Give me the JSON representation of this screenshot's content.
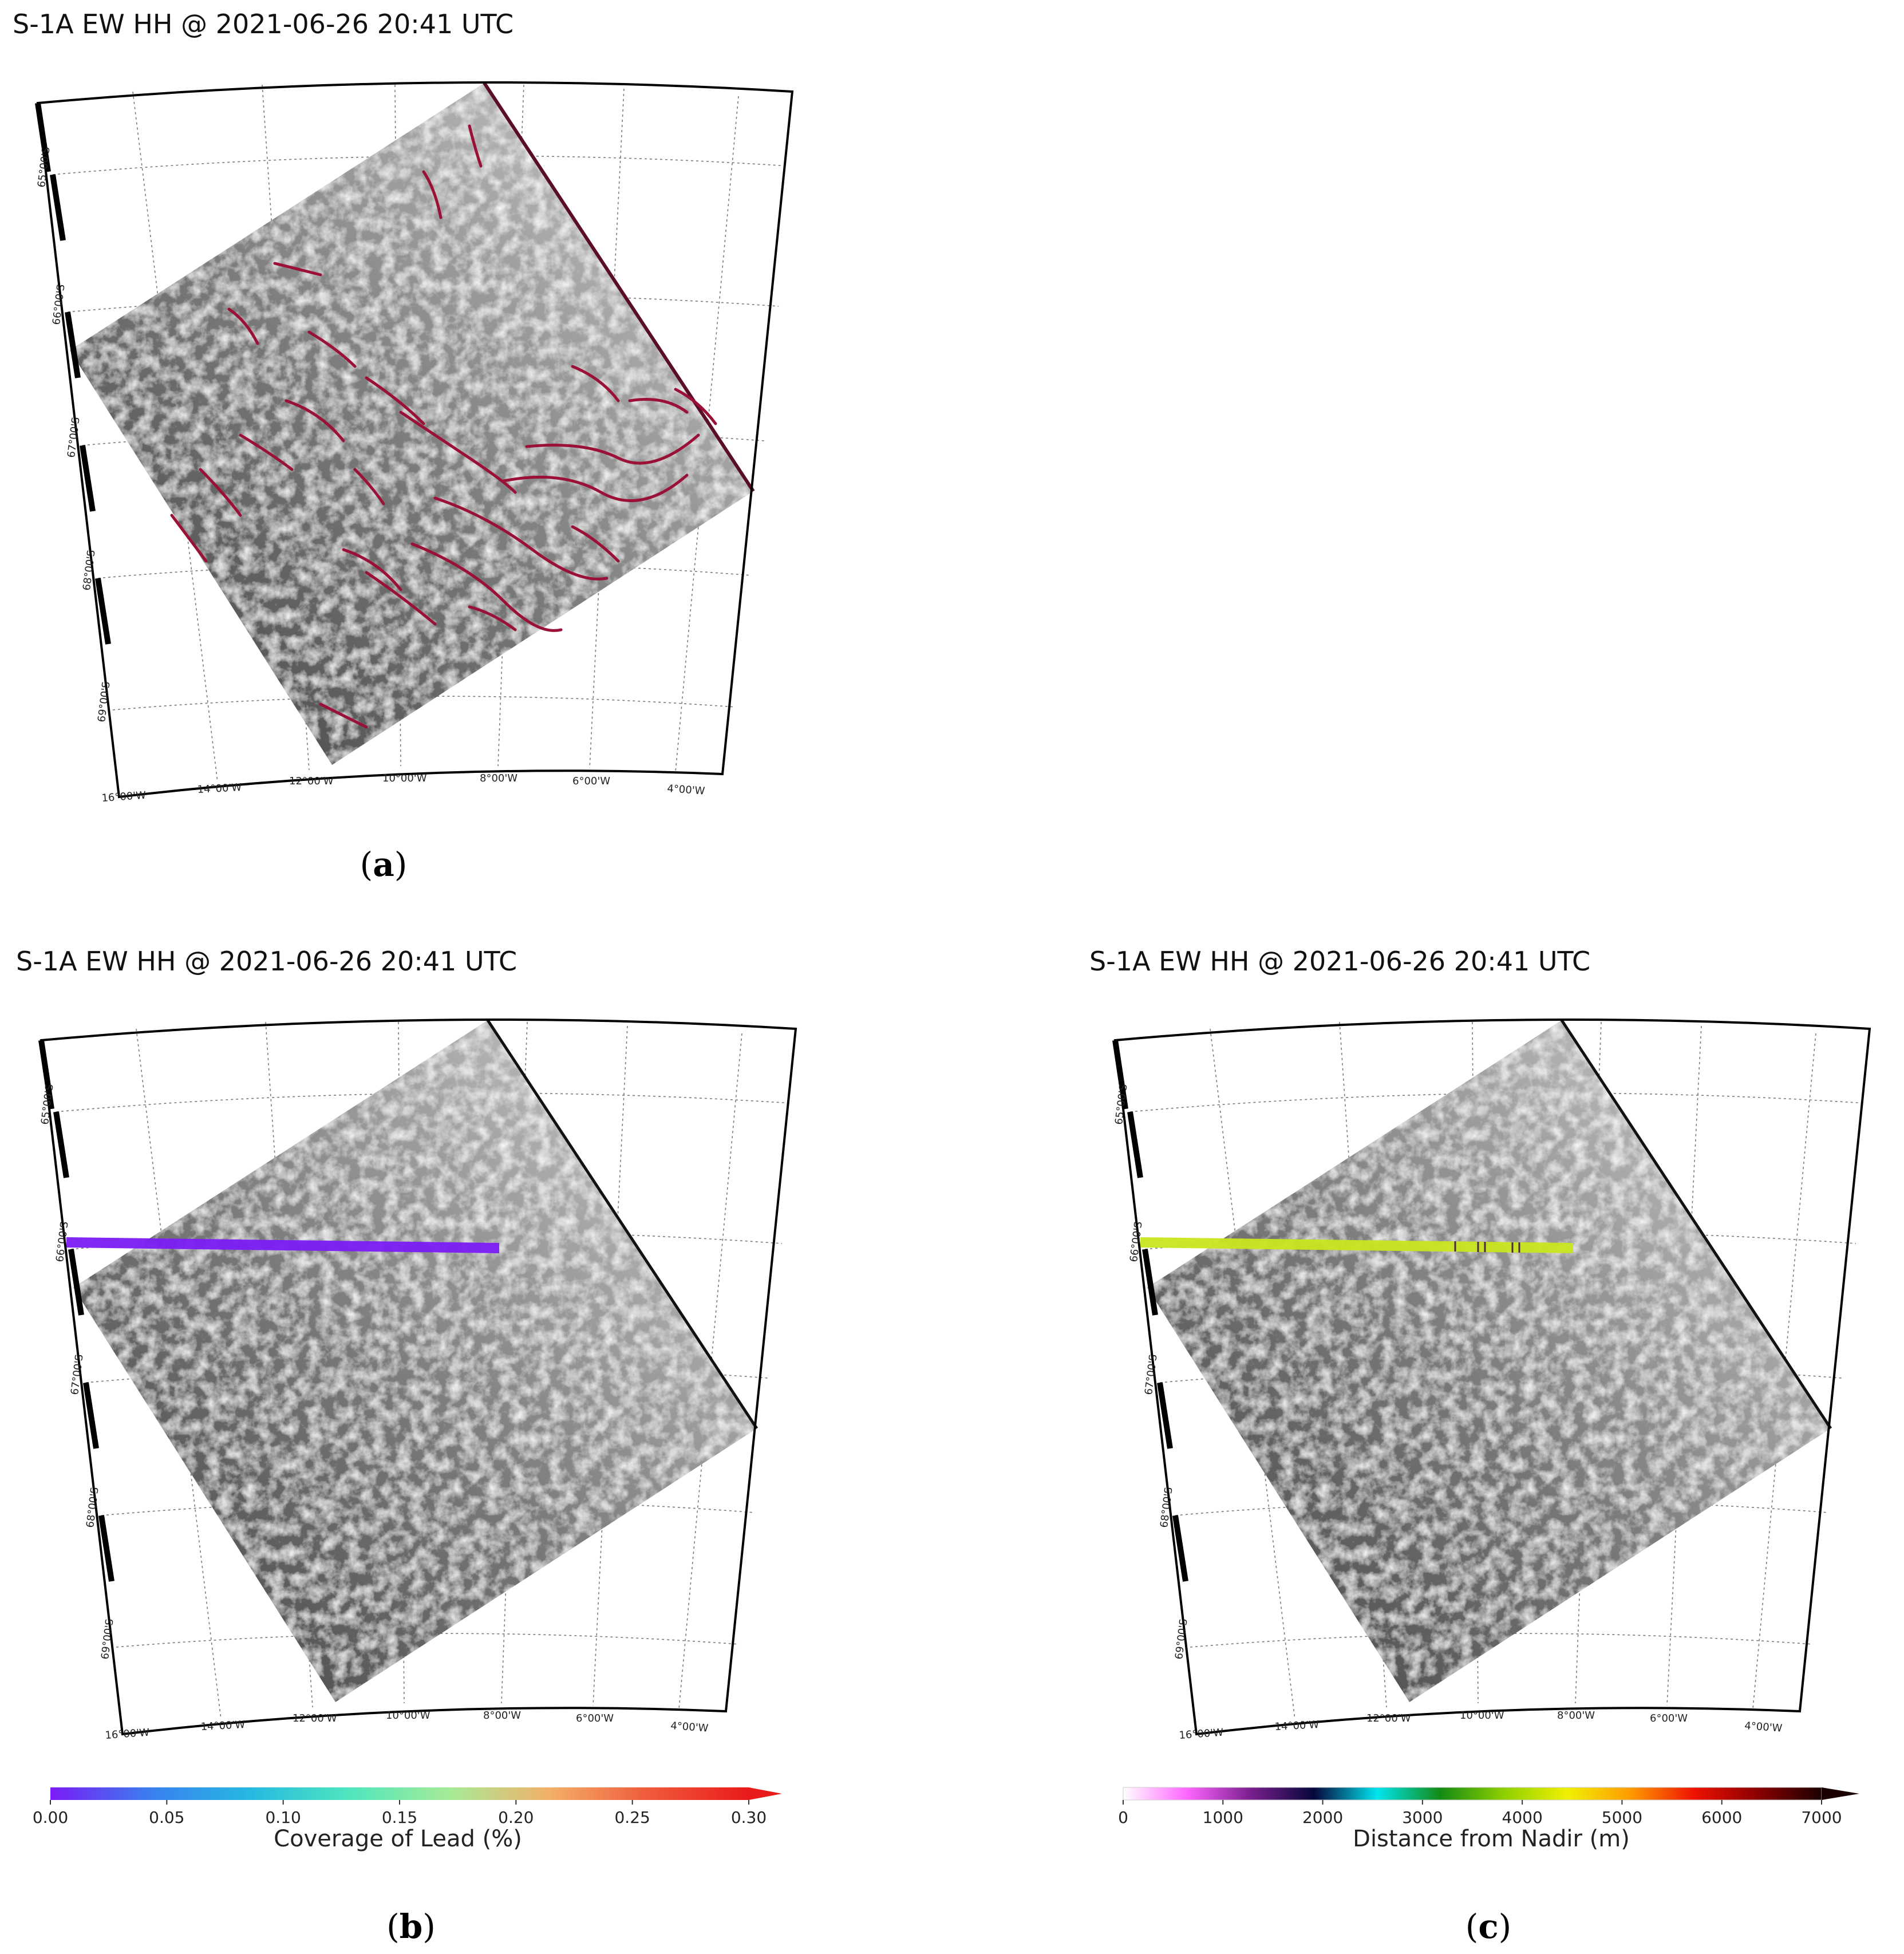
{
  "panels": [
    {
      "id": "a",
      "title": "S-1A EW HH @ 2021-06-26 20:41 UTC",
      "caption_letter": "a",
      "lat_labels": [
        "65°00'S",
        "66°00'S",
        "67°00'S",
        "68°00'S",
        "69°00'S"
      ],
      "lon_labels": [
        "16°00'W",
        "14°00'W",
        "12°00'W",
        "10°00'W",
        "8°00'W",
        "6°00'W",
        "4°00'W"
      ],
      "overlay": "lead-detections",
      "lead_color": "#9b1036"
    },
    {
      "id": "b",
      "title": "S-1A EW HH @ 2021-06-26 20:41 UTC",
      "caption_letter": "b",
      "lat_labels": [
        "65°00'S",
        "66°00'S",
        "67°00'S",
        "68°00'S",
        "69°00'S"
      ],
      "lon_labels": [
        "16°00'W",
        "14°00'W",
        "12°00'W",
        "10°00'W",
        "8°00'W",
        "6°00'W",
        "4°00'W"
      ],
      "overlay": "altimeter-track",
      "track_color": "#7a1cf5",
      "colorbar": {
        "label": "Coverage of Lead (%)",
        "ticks": [
          "0.00",
          "0.05",
          "0.10",
          "0.15",
          "0.20",
          "0.25",
          "0.30"
        ],
        "colors": [
          "#7a1cf5",
          "#3a7ff0",
          "#25b9e2",
          "#4fe6be",
          "#a6eb97",
          "#f3b069",
          "#f05a3a",
          "#e81a1a"
        ]
      }
    },
    {
      "id": "c",
      "title": "S-1A EW HH @ 2021-06-26 20:41 UTC",
      "caption_letter": "c",
      "lat_labels": [
        "65°00'S",
        "66°00'S",
        "67°00'S",
        "68°00'S",
        "69°00'S"
      ],
      "lon_labels": [
        "16°00'W",
        "14°00'W",
        "12°00'W",
        "10°00'W",
        "8°00'W",
        "6°00'W",
        "4°00'W"
      ],
      "overlay": "altimeter-track",
      "track_color": "#c9e51f",
      "colorbar": {
        "label": "Distance from Nadir (m)",
        "ticks": [
          "0",
          "1000",
          "2000",
          "3000",
          "4000",
          "5000",
          "6000",
          "7000"
        ],
        "colors": [
          "#ffffff",
          "#ff66ff",
          "#7a1f8f",
          "#06063a",
          "#00e5ef",
          "#148a14",
          "#8fd000",
          "#f0f000",
          "#ff9a00",
          "#ee1100",
          "#8a0000",
          "#1a0000"
        ]
      }
    }
  ]
}
